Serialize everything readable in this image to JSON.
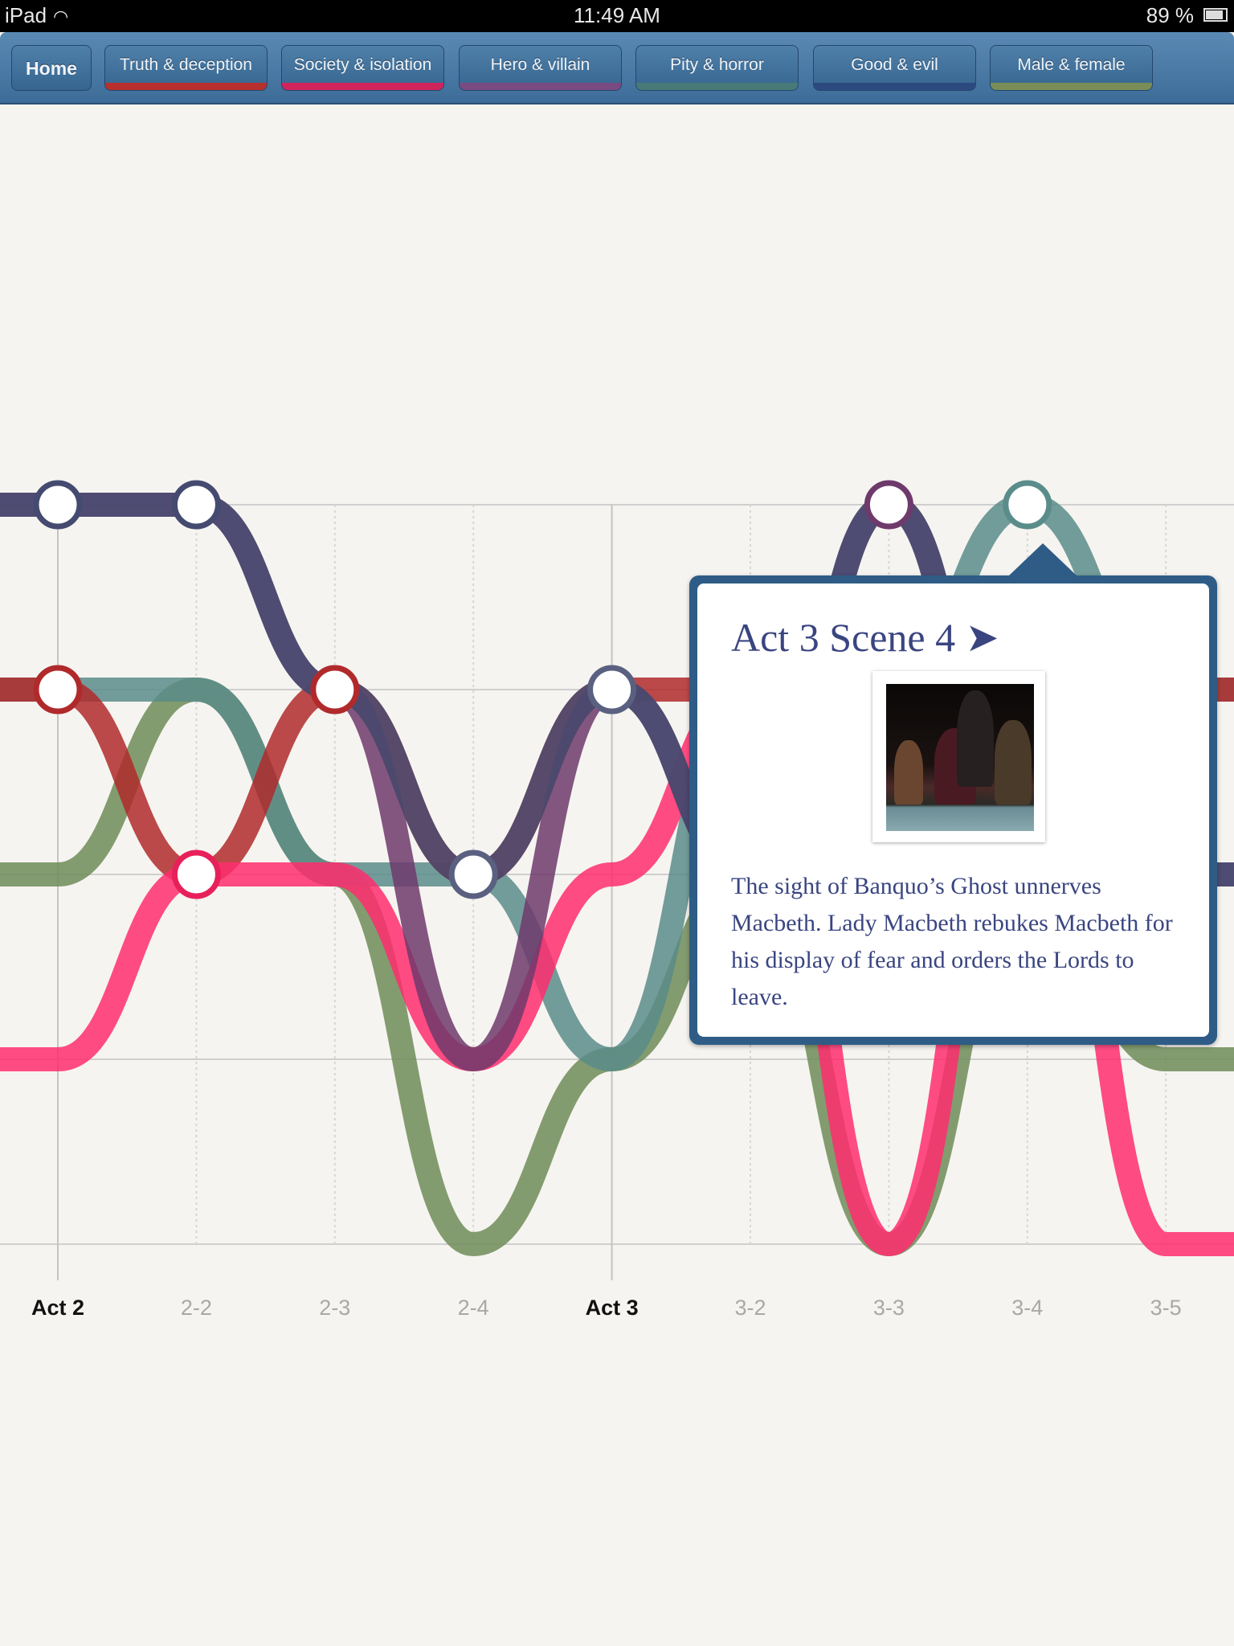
{
  "status_bar": {
    "device": "iPad",
    "time": "11:49 AM",
    "battery": "89 %",
    "battery_level": 0.89
  },
  "nav": {
    "home": "Home",
    "themes": [
      {
        "label": "Truth & deception",
        "color": "#b8302e"
      },
      {
        "label": "Society & isolation",
        "color": "#d0245c"
      },
      {
        "label": "Hero & villain",
        "color": "#7a4a82"
      },
      {
        "label": "Pity & horror",
        "color": "#4a7a78"
      },
      {
        "label": "Good & evil",
        "color": "#2c4a80"
      },
      {
        "label": "Male & female",
        "color": "#7a8c58"
      }
    ]
  },
  "chart_data": {
    "type": "line",
    "categories": [
      "Act 2",
      "2-2",
      "2-3",
      "2-4",
      "Act 3",
      "3-2",
      "3-3",
      "3-4",
      "3-5"
    ],
    "act_categories": [
      "Act 2",
      "Act 3"
    ],
    "ylim": [
      0,
      4
    ],
    "grid": true,
    "series": [
      {
        "theme": "Male & female",
        "color": "#6f8c58",
        "values": [
          2,
          3,
          2,
          0,
          1,
          2,
          0,
          2,
          1
        ]
      },
      {
        "theme": "Pity & horror",
        "color": "#5a8c8a",
        "values": [
          3,
          3,
          2,
          2,
          1,
          3,
          3,
          4,
          3
        ]
      },
      {
        "theme": "Truth & deception",
        "color": "#b02a2c",
        "values": [
          3,
          2,
          3,
          2,
          3,
          3,
          3,
          3,
          3
        ]
      },
      {
        "theme": "Society & isolation",
        "color": "#ff2d6e",
        "values": [
          1,
          2,
          2,
          1,
          2,
          3,
          0,
          3,
          0
        ]
      },
      {
        "theme": "Hero & villain",
        "color": "#6e3a6c",
        "values": [
          4,
          4,
          3,
          1,
          3,
          2,
          4,
          2,
          2
        ]
      },
      {
        "theme": "Good & evil",
        "color": "#454a70",
        "values": [
          4,
          4,
          3,
          2,
          3,
          2,
          4,
          2,
          2
        ]
      }
    ],
    "nodes": [
      {
        "category": "Act 2",
        "value": 4,
        "color": "#454a70"
      },
      {
        "category": "2-2",
        "value": 4,
        "color": "#454a70"
      },
      {
        "category": "Act 2",
        "value": 3,
        "color": "#b02a2c"
      },
      {
        "category": "2-3",
        "value": 3,
        "color": "#b02a2c"
      },
      {
        "category": "2-2",
        "value": 2,
        "color": "#e8205a"
      },
      {
        "category": "2-4",
        "value": 2,
        "color": "#5a6080"
      },
      {
        "category": "Act 3",
        "value": 3,
        "color": "#5a6080"
      },
      {
        "category": "3-3",
        "value": 4,
        "color": "#6e3a6c"
      },
      {
        "category": "3-4",
        "value": 4,
        "color": "#5a8c8a"
      }
    ]
  },
  "popup": {
    "title": "Act 3 Scene 4",
    "arrow": "➤",
    "description": "The sight of Banquo’s Ghost unnerves Macbeth. Lady Macbeth rebukes Macbeth for his display of fear and orders the Lords to leave."
  }
}
